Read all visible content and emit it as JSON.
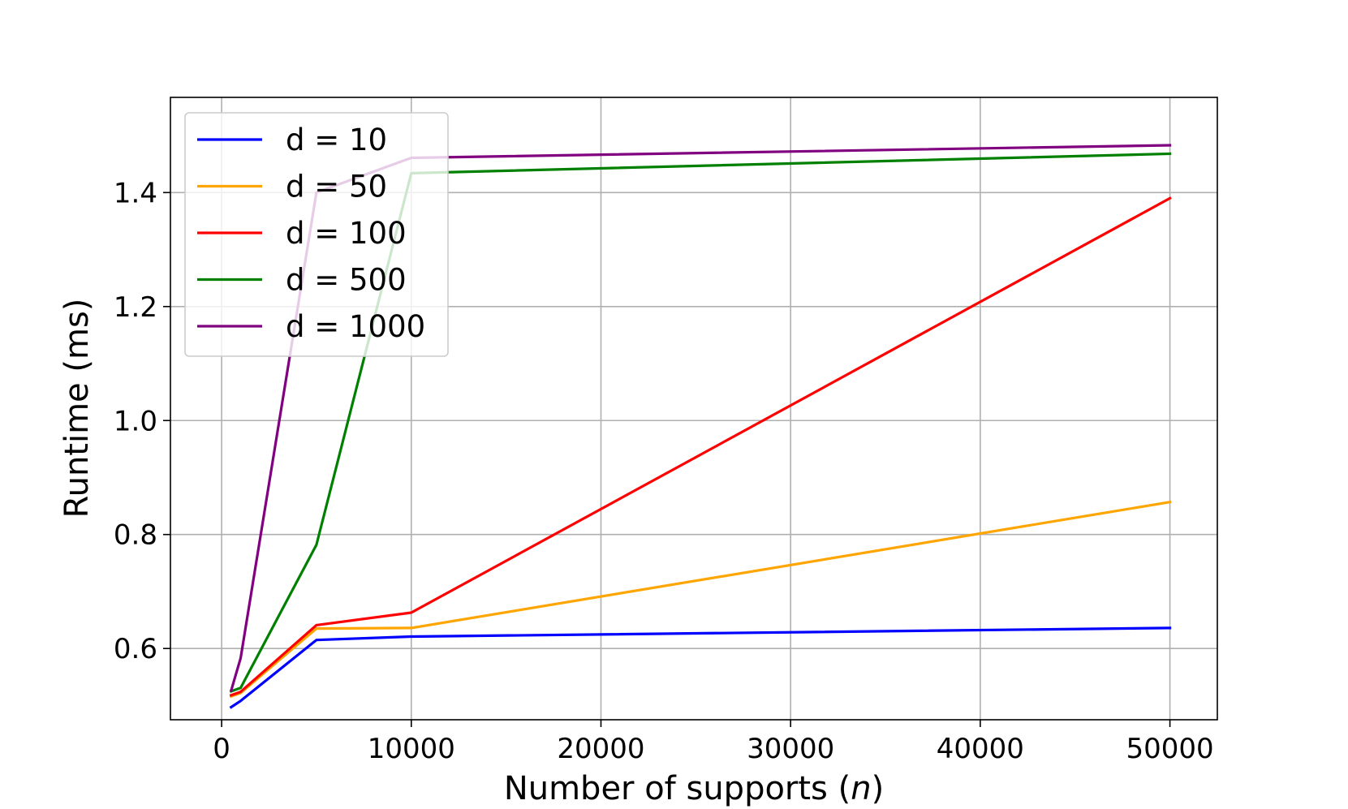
{
  "chart_data": {
    "type": "line",
    "title": "",
    "xlabel_text": "Number of supports (",
    "xlabel_var": "n",
    "xlabel_close": ")",
    "ylabel": "Runtime (ms)",
    "x": [
      500,
      1000,
      5000,
      10000,
      50000
    ],
    "xlim": [
      -2700,
      52500
    ],
    "ylim": [
      0.475,
      1.567
    ],
    "xticks": [
      0,
      10000,
      20000,
      30000,
      40000,
      50000
    ],
    "xtick_labels": [
      "0",
      "10000",
      "20000",
      "30000",
      "40000",
      "50000"
    ],
    "yticks": [
      0.6,
      0.8,
      1.0,
      1.2,
      1.4
    ],
    "ytick_labels": [
      "0.6",
      "0.8",
      "1.0",
      "1.2",
      "1.4"
    ],
    "grid": true,
    "legend_position": "top-left",
    "series": [
      {
        "name": "d = 10",
        "color": "#0000ff",
        "values": [
          0.497,
          0.508,
          0.615,
          0.621,
          0.636
        ]
      },
      {
        "name": "d = 50",
        "color": "#ffa500",
        "values": [
          0.516,
          0.522,
          0.635,
          0.636,
          0.857
        ]
      },
      {
        "name": "d = 100",
        "color": "#ff0000",
        "values": [
          0.518,
          0.524,
          0.641,
          0.663,
          1.39
        ]
      },
      {
        "name": "d = 500",
        "color": "#008000",
        "values": [
          0.525,
          0.531,
          0.782,
          1.434,
          1.468
        ]
      },
      {
        "name": "d = 1000",
        "color": "#800080",
        "values": [
          0.526,
          0.583,
          1.4,
          1.461,
          1.483
        ]
      }
    ]
  }
}
